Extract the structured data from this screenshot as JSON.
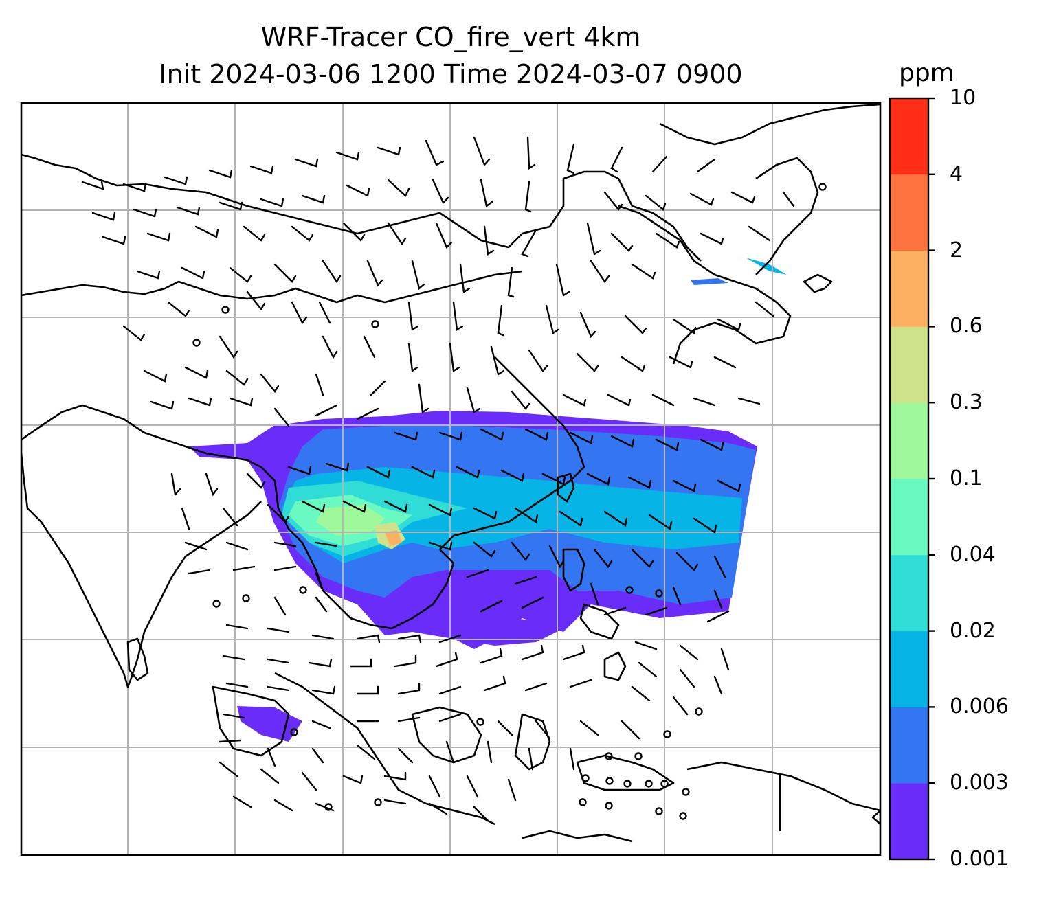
{
  "title_line1": "WRF-Tracer CO_fire_vert 4km",
  "title_line2": "Init 2024-03-06 1200 Time 2024-03-07 0900",
  "colorbar": {
    "unit": "ppm",
    "levels": [
      "0.001",
      "0.003",
      "0.006",
      "0.02",
      "0.04",
      "0.1",
      "0.3",
      "0.6",
      "2",
      "4",
      "10"
    ],
    "colors": [
      "#6a2cf8",
      "#3476f2",
      "#06b4e6",
      "#30dcd6",
      "#68fac0",
      "#9ef89a",
      "#cee289",
      "#feb062",
      "#fe7440",
      "#fe2f16"
    ]
  },
  "map": {
    "gridlines": "on",
    "wind_barbs": "on",
    "coastlines_color": "#000000",
    "grid_color": "#b4b4b4"
  }
}
